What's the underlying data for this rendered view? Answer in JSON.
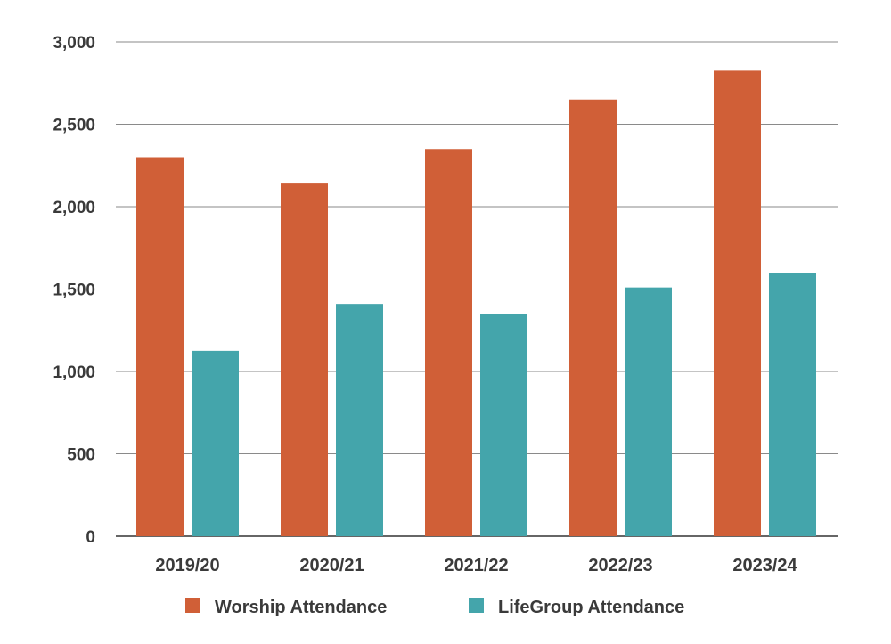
{
  "chart_data": {
    "type": "bar",
    "categories": [
      "2019/20",
      "2020/21",
      "2021/22",
      "2022/23",
      "2023/24"
    ],
    "series": [
      {
        "name": "Worship Attendance",
        "color": "#d05f37",
        "values": [
          2300,
          2140,
          2350,
          2650,
          2825
        ]
      },
      {
        "name": "LifeGroup Attendance",
        "color": "#44a5ab",
        "values": [
          1125,
          1410,
          1350,
          1510,
          1600
        ]
      }
    ],
    "yticks": [
      "0",
      "500",
      "1,000",
      "1,500",
      "2,000",
      "2,500",
      "3,000"
    ],
    "ylim": [
      0,
      3000
    ],
    "grid": true,
    "legend_position": "bottom"
  }
}
